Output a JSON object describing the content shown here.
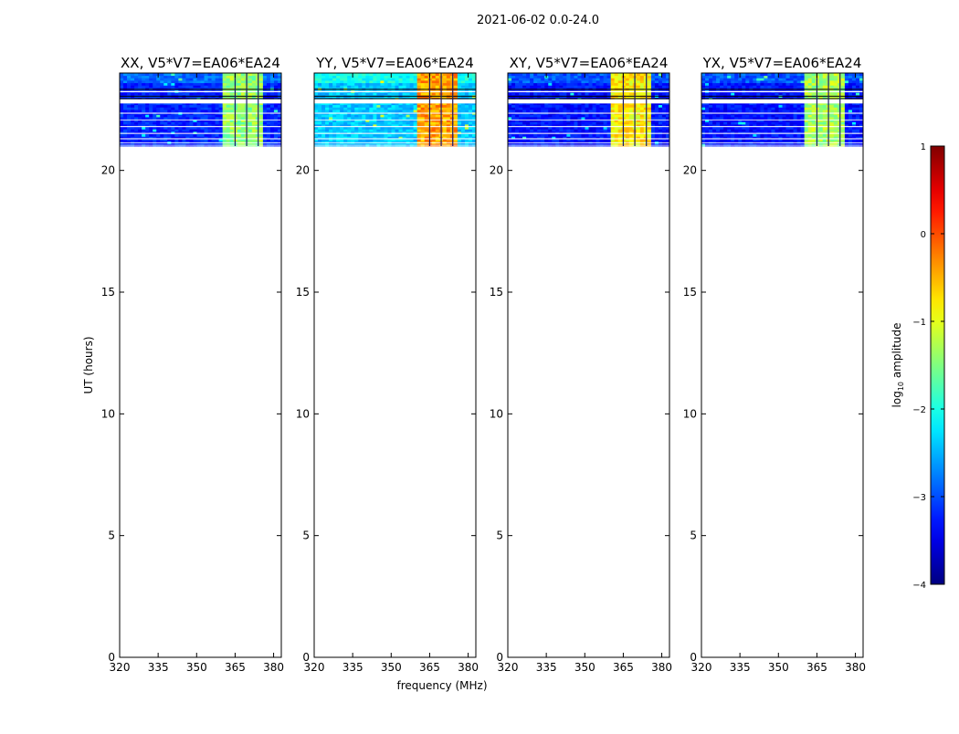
{
  "figure": {
    "suptitle": "2021-06-02 0.0-24.0",
    "ylabel": "UT (hours)",
    "xlabel": "frequency (MHz)"
  },
  "chart_data": {
    "type": "heatmap",
    "suptitle": "2021-06-02 0.0-24.0",
    "xlabel": "frequency (MHz)",
    "ylabel": "UT (hours)",
    "xlim": [
      320,
      383
    ],
    "ylim": [
      0,
      24
    ],
    "xticks": [
      320,
      335,
      350,
      365,
      380
    ],
    "yticks": [
      0,
      5,
      10,
      15,
      20
    ],
    "data_time_range": [
      21.0,
      24.0
    ],
    "rfi_band_mhz": [
      360,
      376
    ],
    "panels": [
      {
        "title": "XX, V5*V7=EA06*EA24",
        "polarization": "XX",
        "background_log_amp": -3.2,
        "rfi_log_amp": -1.4
      },
      {
        "title": "YY, V5*V7=EA06*EA24",
        "polarization": "YY",
        "background_log_amp": -2.4,
        "rfi_log_amp": -0.4
      },
      {
        "title": "XY, V5*V7=EA06*EA24",
        "polarization": "XY",
        "background_log_amp": -3.3,
        "rfi_log_amp": -0.8
      },
      {
        "title": "YX, V5*V7=EA06*EA24",
        "polarization": "YX",
        "background_log_amp": -3.3,
        "rfi_log_amp": -1.3
      }
    ],
    "colorbar": {
      "label_prefix": "log",
      "label_sub": "10",
      "label_suffix": " amplitude",
      "range": [
        -4,
        1
      ],
      "ticks": [
        1,
        0,
        -1,
        -2,
        -3,
        -4
      ],
      "tick_labels": [
        "1",
        "0",
        "−1",
        "−2",
        "−3",
        "−4"
      ],
      "colormap": "jet"
    }
  }
}
